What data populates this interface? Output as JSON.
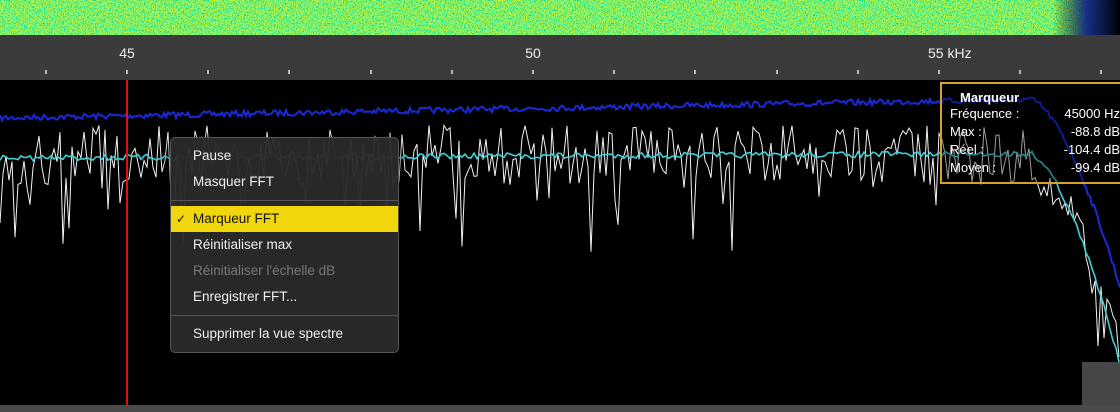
{
  "spectrum": {
    "axis_labels": [
      "45",
      "50",
      "55 kHz"
    ]
  },
  "context_menu": {
    "groups": [
      [
        {
          "label": "Pause"
        },
        {
          "label": "Masquer FFT"
        }
      ],
      [
        {
          "label": "Marqueur FFT",
          "checked": true
        },
        {
          "label": "Réinitialiser max"
        },
        {
          "label": "Réinitialiser l'échelle dB",
          "disabled": true
        },
        {
          "label": "Enregistrer FFT..."
        }
      ],
      [
        {
          "label": "Supprimer la vue spectre"
        }
      ]
    ]
  },
  "marker": {
    "title": "Marqueur",
    "rows": [
      [
        "Fréquence :",
        "45000 Hz"
      ],
      [
        "Max :",
        "-88.8 dB"
      ],
      [
        "Réel :",
        "-104.4 dB"
      ],
      [
        "Moyen :",
        "-99.4 dB"
      ]
    ]
  }
}
